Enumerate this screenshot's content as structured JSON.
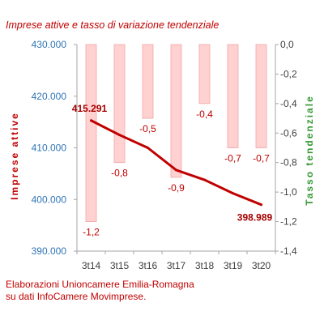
{
  "title": "Imprese attive e tasso di variazione tendenziale",
  "source_lines": [
    "Elaborazioni Unioncamere Emilia-Romagna",
    "su dati InfoCamere Movimprese."
  ],
  "colors": {
    "bar_fill": "#ffd1d1",
    "bar_stroke": "#f2a5a5",
    "line": "#c00000",
    "left_axis": "#2e75b6",
    "right_axis_label": "#339933"
  },
  "chart_data": {
    "type": "bar+line",
    "categories": [
      "3t14",
      "3t15",
      "3t16",
      "3t17",
      "3t18",
      "3t19",
      "3t20"
    ],
    "bars": {
      "axis": "right",
      "values": [
        -1.2,
        -0.8,
        -0.5,
        -0.9,
        -0.4,
        -0.7,
        -0.7
      ],
      "labels": [
        "-1,2",
        "-0,8",
        "-0,5",
        "-0,9",
        "-0,4",
        "-0,7",
        "-0,7"
      ]
    },
    "line": {
      "axis": "left",
      "values": [
        415291,
        412500,
        410000,
        405700,
        403800,
        401200,
        398989
      ],
      "labels": [
        "415.291",
        "",
        "",
        "",
        "",
        "",
        "398.989"
      ]
    },
    "ylabel_left": "Imprese attive",
    "ylabel_right": "Tasso tendenziale",
    "y_left": {
      "min": 390000,
      "max": 430000,
      "ticks": [
        390000,
        400000,
        410000,
        420000,
        430000
      ],
      "tick_labels": [
        "390.000",
        "400.000",
        "410.000",
        "420.000",
        "430.000"
      ]
    },
    "y_right": {
      "min": -1.4,
      "max": 0.0,
      "ticks": [
        0.0,
        -0.2,
        -0.4,
        -0.6,
        -0.8,
        -1.0,
        -1.2,
        -1.4
      ],
      "tick_labels": [
        "0,0",
        "-0,2",
        "-0,4",
        "-0,6",
        "-0,8",
        "-1,0",
        "-1,2",
        "-1,4"
      ]
    },
    "grid": false,
    "legend": "none"
  }
}
